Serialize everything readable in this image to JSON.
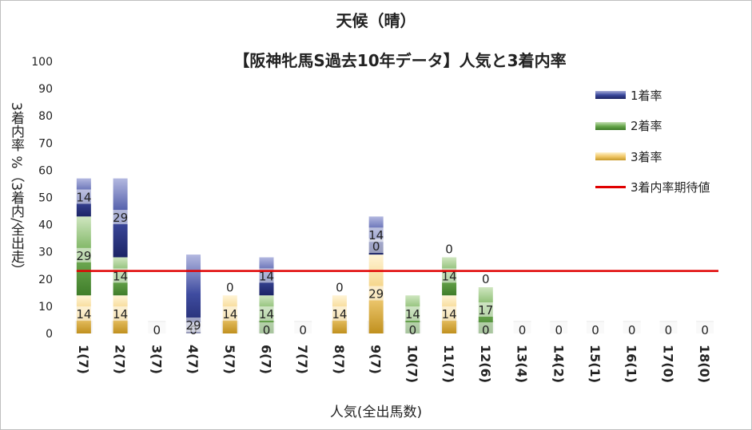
{
  "chart_data": {
    "type": "bar",
    "title": "天候（晴）",
    "subtitle": "【阪神牝馬S過去10年データ】人気と3着内率",
    "xlabel": "人気(全出馬数)",
    "ylabel": "3着内率 %（3着内/全出走）",
    "ylim": [
      0,
      100
    ],
    "yticks": [
      0,
      10,
      20,
      30,
      40,
      50,
      60,
      70,
      80,
      90,
      100
    ],
    "grid": false,
    "legend_position": "right",
    "categories": [
      "1(7)",
      "2(7)",
      "3(7)",
      "4(7)",
      "5(7)",
      "6(7)",
      "7(7)",
      "8(7)",
      "9(7)",
      "10(7)",
      "11(7)",
      "12(6)",
      "13(4)",
      "14(2)",
      "15(1)",
      "16(1)",
      "17(0)",
      "18(0)"
    ],
    "series": [
      {
        "name": "3着率",
        "color": "#e6b450",
        "values": [
          14,
          14,
          0,
          0,
          14,
          0,
          0,
          14,
          29,
          0,
          14,
          0,
          0,
          0,
          0,
          0,
          0,
          0
        ]
      },
      {
        "name": "2着率",
        "color": "#6aa84f",
        "values": [
          29,
          14,
          0,
          0,
          0,
          14,
          0,
          0,
          0,
          14,
          14,
          17,
          0,
          0,
          0,
          0,
          0,
          0
        ]
      },
      {
        "name": "1着率",
        "color": "#3c4a9e",
        "values": [
          14,
          29,
          0,
          29,
          0,
          14,
          0,
          0,
          14,
          0,
          0,
          0,
          0,
          0,
          0,
          0,
          0,
          0
        ]
      }
    ],
    "data_labels": [
      [
        "14",
        "29",
        "14"
      ],
      [
        "14",
        "14",
        "29"
      ],
      [
        "0"
      ],
      [
        "0",
        "29"
      ],
      [
        "14",
        "0"
      ],
      [
        "0",
        "14",
        "14"
      ],
      [
        "0"
      ],
      [
        "14",
        "0"
      ],
      [
        "29",
        "0",
        "14"
      ],
      [
        "0",
        "14"
      ],
      [
        "14",
        "14",
        "0"
      ],
      [
        "0",
        "17",
        "0"
      ],
      [
        "0"
      ],
      [
        "0"
      ],
      [
        "0"
      ],
      [
        "0"
      ],
      [
        "0"
      ],
      [
        "0"
      ]
    ],
    "expected_line": {
      "name": "3着内率期待値",
      "value": 23,
      "color": "#e00000"
    }
  }
}
